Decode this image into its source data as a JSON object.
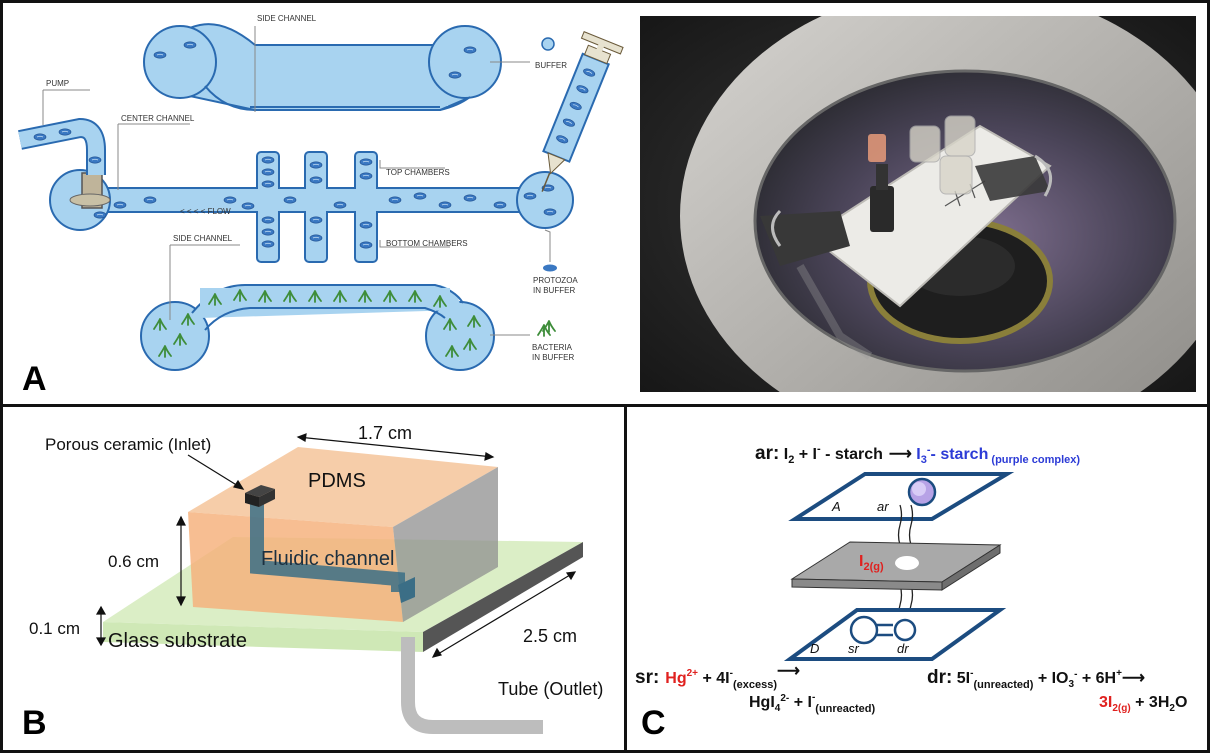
{
  "panel_a": {
    "label": "A",
    "schematic": {
      "side_channel_top": "SIDE CHANNEL",
      "buffer": "BUFFER",
      "pump": "PUMP",
      "center_channel": "CENTER CHANNEL",
      "top_chambers": "TOP CHAMBERS",
      "flow": "< < < < FLOW",
      "side_channel_bottom": "SIDE CHANNEL",
      "bottom_chambers": "BOTTOM CHAMBERS",
      "protozoa": [
        "PROTOZOA",
        "IN BUFFER"
      ],
      "bacteria": [
        "BACTERIA",
        "IN BUFFER"
      ]
    }
  },
  "panel_b": {
    "label": "B",
    "porous": "Porous ceramic (Inlet)",
    "width_dim": "1.7 cm",
    "pdms": "PDMS",
    "height_dim": "0.6 cm",
    "channel": "Fluidic channel",
    "substrate_thickness": "0.1 cm",
    "glass": "Glass substrate",
    "depth_dim": "2.5 cm",
    "tube": "Tube (Outlet)"
  },
  "panel_c": {
    "label": "C",
    "ar_eq": {
      "prefix": "ar:",
      "reactants_a": " I",
      "sub2": "2",
      "plus": " + I",
      "sup_minus": "-",
      "rest": " - starch",
      "arrow": "⟶",
      "product": " I",
      "sub3": "3",
      "sup3": "-",
      "product_rest": "- starch",
      "note": " (purple complex)"
    },
    "plate_a": {
      "letter": "A",
      "spot": "ar"
    },
    "membrane": {
      "species": "I",
      "sub": "2(g)"
    },
    "plate_d": {
      "letter": "D",
      "left": "sr",
      "right": "dr"
    },
    "sr_eq": {
      "prefix": "sr:",
      "hg": "Hg",
      "hg_sup": "2+",
      "plus": " + 4I",
      "sup": "-",
      "sub": "(excess)",
      "arrow": "⟶",
      "prod": "HgI",
      "prod_sub": "4",
      "prod_sup": "2-",
      "plus2": "  +  I",
      "sup2": "-",
      "sub2": "(unreacted)"
    },
    "dr_eq": {
      "prefix": "dr:",
      "a": " 5I",
      "a_sup": "-",
      "a_sub": "(unreacted)",
      "b": " + IO",
      "b_sub": "3",
      "b_sup": "-",
      "c": " + 6H",
      "c_sup": "+",
      "arrow": "⟶",
      "p1": "3I",
      "p1_sub": "2(g)",
      "p2": " + 3H",
      "p2_sub": "2",
      "p3": "O"
    },
    "colors": {
      "blue": "#2c3bd6",
      "red": "#e0211f",
      "plate_stroke": "#1c4c80"
    }
  }
}
